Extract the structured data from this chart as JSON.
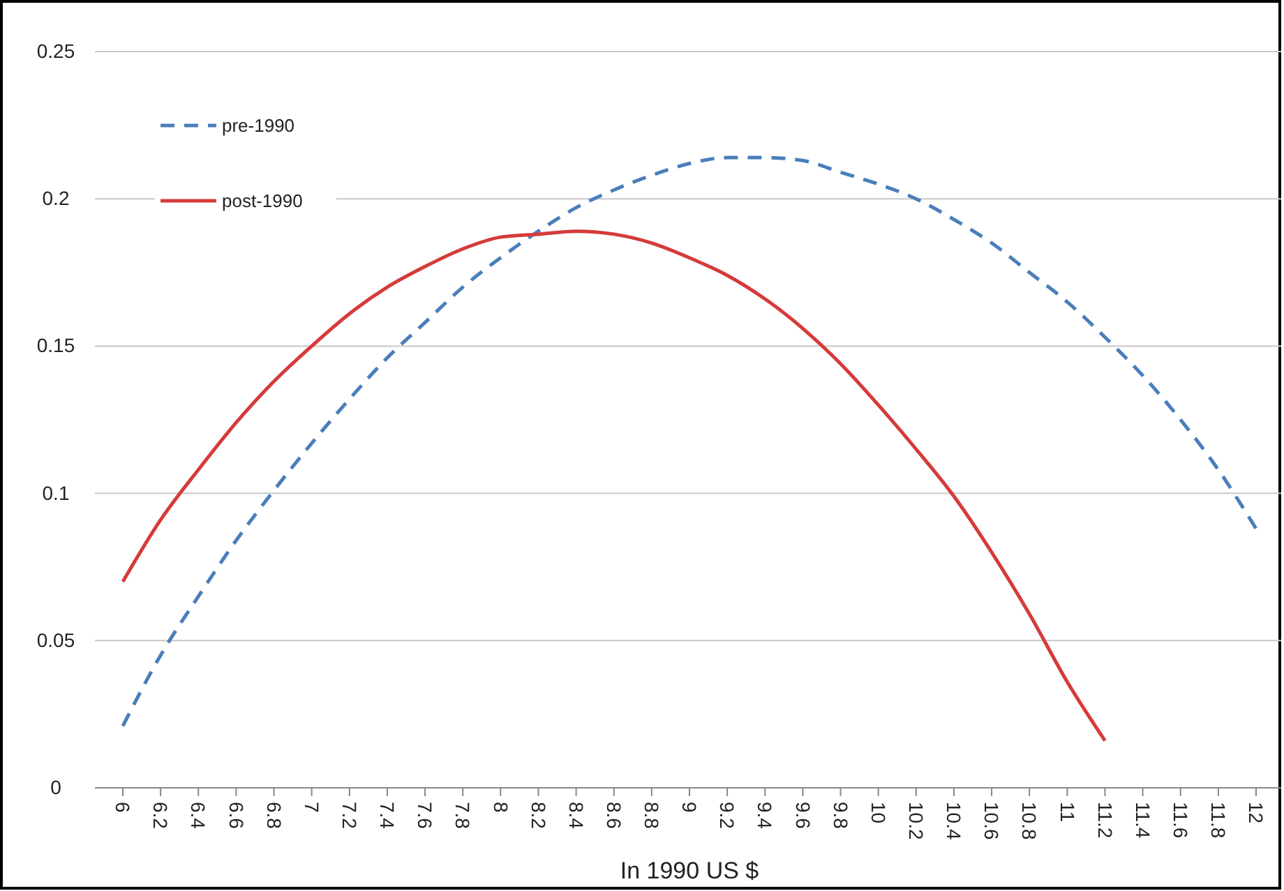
{
  "chart_data": {
    "type": "line",
    "xlabel": "In 1990 US $",
    "categories": [
      "6",
      "6.2",
      "6.4",
      "6.6",
      "6.8",
      "7",
      "7.2",
      "7.4",
      "7.6",
      "7.8",
      "8",
      "8.2",
      "8.4",
      "8.6",
      "8.8",
      "9",
      "9.2",
      "9.4",
      "9.6",
      "9.8",
      "10",
      "10.2",
      "10.4",
      "10.6",
      "10.8",
      "11",
      "11.2",
      "11.4",
      "11.6",
      "11.8",
      "12"
    ],
    "series": [
      {
        "name": "pre-1990",
        "color": "#4a7ebb",
        "line_style": "dashed",
        "values": [
          0.021,
          0.045,
          0.065,
          0.084,
          0.101,
          0.117,
          0.132,
          0.146,
          0.158,
          0.17,
          0.18,
          0.189,
          0.197,
          0.203,
          0.208,
          0.212,
          0.214,
          0.214,
          0.213,
          0.209,
          0.205,
          0.2,
          0.193,
          0.185,
          0.175,
          0.165,
          0.153,
          0.14,
          0.125,
          0.108,
          0.088
        ]
      },
      {
        "name": "post-1990",
        "color": "#d63a3a",
        "line_style": "solid",
        "values": [
          0.07,
          0.091,
          0.108,
          0.124,
          0.138,
          0.15,
          0.161,
          0.17,
          0.177,
          0.183,
          0.187,
          0.188,
          0.189,
          0.188,
          0.185,
          0.18,
          0.174,
          0.166,
          0.156,
          0.144,
          0.13,
          0.115,
          0.099,
          0.08,
          0.059,
          0.036,
          0.016,
          null,
          null,
          null,
          null
        ]
      }
    ],
    "ylim": [
      0,
      0.25
    ],
    "yticks": [
      0,
      0.05,
      0.1,
      0.15,
      0.2,
      0.25
    ],
    "grid": "y",
    "legend": "top left",
    "marker": "none"
  }
}
